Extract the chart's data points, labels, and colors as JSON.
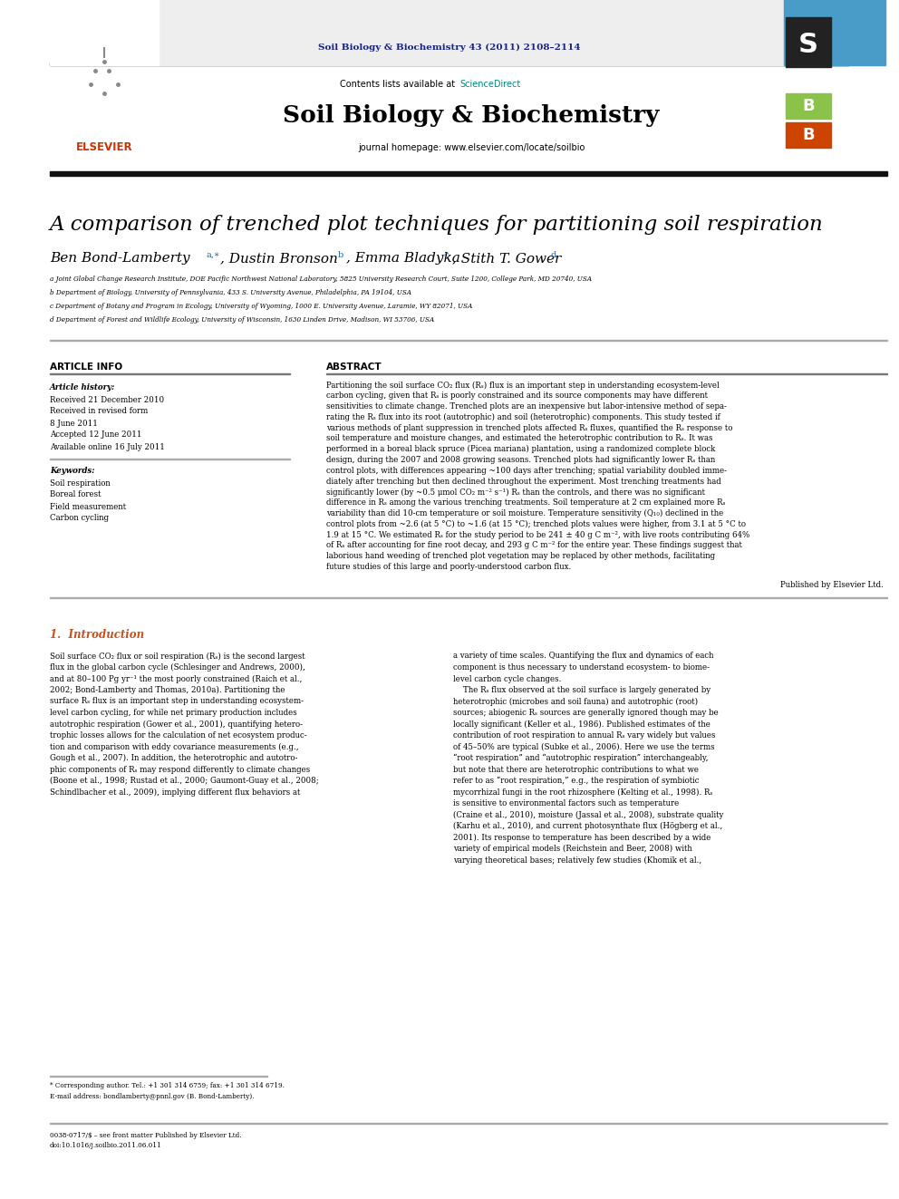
{
  "journal_ref": "Soil Biology & Biochemistry 43 (2011) 2108–2114",
  "journal_ref_color": "#1a237e",
  "contents_text": "Contents lists available at ",
  "sciencedirect_text": "ScienceDirect",
  "sciencedirect_color": "#00897b",
  "journal_name": "Soil Biology & Biochemistry",
  "journal_homepage": "journal homepage: www.elsevier.com/locate/soilbio",
  "article_title": "A comparison of trenched plot techniques for partitioning soil respiration",
  "affil_a": "a Joint Global Change Research Institute, DOE Pacific Northwest National Laboratory, 5825 University Research Court, Suite 1200, College Park, MD 20740, USA",
  "affil_b": "b Department of Biology, University of Pennsylvania, 433 S. University Avenue, Philadelphia, PA 19104, USA",
  "affil_c": "c Department of Botany and Program in Ecology, University of Wyoming, 1000 E. University Avenue, Laramie, WY 82071, USA",
  "affil_d": "d Department of Forest and Wildlife Ecology, University of Wisconsin, 1630 Linden Drive, Madison, WI 53706, USA",
  "article_info_header": "ARTICLE INFO",
  "abstract_header": "ABSTRACT",
  "article_history_label": "Article history:",
  "received1": "Received 21 December 2010",
  "received2": "Received in revised form",
  "received2b": "8 June 2011",
  "accepted": "Accepted 12 June 2011",
  "available": "Available online 16 July 2011",
  "keywords_label": "Keywords:",
  "keyword1": "Soil respiration",
  "keyword2": "Boreal forest",
  "keyword3": "Field measurement",
  "keyword4": "Carbon cycling",
  "abstract_lines": [
    "Partitioning the soil surface CO₂ flux (Rₛ) flux is an important step in understanding ecosystem-level",
    "carbon cycling, given that Rₛ is poorly constrained and its source components may have different",
    "sensitivities to climate change. Trenched plots are an inexpensive but labor-intensive method of sepa-",
    "rating the Rₛ flux into its root (autotrophic) and soil (heterotrophic) components. This study tested if",
    "various methods of plant suppression in trenched plots affected Rₛ fluxes, quantified the Rₛ response to",
    "soil temperature and moisture changes, and estimated the heterotrophic contribution to Rₛ. It was",
    "performed in a boreal black spruce (Picea mariana) plantation, using a randomized complete block",
    "design, during the 2007 and 2008 growing seasons. Trenched plots had significantly lower Rₛ than",
    "control plots, with differences appearing ~100 days after trenching; spatial variability doubled imme-",
    "diately after trenching but then declined throughout the experiment. Most trenching treatments had",
    "significantly lower (by ~0.5 μmol CO₂ m⁻² s⁻¹) Rₛ than the controls, and there was no significant",
    "difference in Rₛ among the various trenching treatments. Soil temperature at 2 cm explained more Rₛ",
    "variability than did 10-cm temperature or soil moisture. Temperature sensitivity (Q₁₀) declined in the",
    "control plots from ~2.6 (at 5 °C) to ~1.6 (at 15 °C); trenched plots values were higher, from 3.1 at 5 °C to",
    "1.9 at 15 °C. We estimated Rₛ for the study period to be 241 ± 40 g C m⁻², with live roots contributing 64%",
    "of Rₛ after accounting for fine root decay, and 293 g C m⁻² for the entire year. These findings suggest that",
    "laborious hand weeding of trenched plot vegetation may be replaced by other methods, facilitating",
    "future studies of this large and poorly-understood carbon flux."
  ],
  "published_by": "Published by Elsevier Ltd.",
  "intro_header": "1.  Introduction",
  "intro1_lines": [
    "Soil surface CO₂ flux or soil respiration (Rₛ) is the second largest",
    "flux in the global carbon cycle (Schlesinger and Andrews, 2000),",
    "and at 80–100 Pg yr⁻¹ the most poorly constrained (Raich et al.,",
    "2002; Bond-Lamberty and Thomas, 2010a). Partitioning the",
    "surface Rₛ flux is an important step in understanding ecosystem-",
    "level carbon cycling, for while net primary production includes",
    "autotrophic respiration (Gower et al., 2001), quantifying hetero-",
    "trophic losses allows for the calculation of net ecosystem produc-",
    "tion and comparison with eddy covariance measurements (e.g.,",
    "Gough et al., 2007). In addition, the heterotrophic and autotro-",
    "phic components of Rₛ may respond differently to climate changes",
    "(Boone et al., 1998; Rustad et al., 2000; Gaumont-Guay et al., 2008;",
    "Schindlbacher et al., 2009), implying different flux behaviors at"
  ],
  "intro2_lines": [
    "a variety of time scales. Quantifying the flux and dynamics of each",
    "component is thus necessary to understand ecosystem- to biome-",
    "level carbon cycle changes.",
    "    The Rₛ flux observed at the soil surface is largely generated by",
    "heterotrophic (microbes and soil fauna) and autotrophic (root)",
    "sources; abiogenic Rₛ sources are generally ignored though may be",
    "locally significant (Keller et al., 1986). Published estimates of the",
    "contribution of root respiration to annual Rₛ vary widely but values",
    "of 45–50% are typical (Subke et al., 2006). Here we use the terms",
    "“root respiration” and “autotrophic respiration” interchangeably,",
    "but note that there are heterotrophic contributions to what we",
    "refer to as “root respiration,” e.g., the respiration of symbiotic",
    "mycorrhizal fungi in the root rhizosphere (Kelting et al., 1998). Rₛ",
    "is sensitive to environmental factors such as temperature",
    "(Craine et al., 2010), moisture (Jassal et al., 2008), substrate quality",
    "(Karhu et al., 2010), and current photosynthate flux (Högberg et al.,",
    "2001). Its response to temperature has been described by a wide",
    "variety of empirical models (Reichstein and Beer, 2008) with",
    "varying theoretical bases; relatively few studies (Khomik et al.,"
  ],
  "footnote1": "* Corresponding author. Tel.: +1 301 314 6759; fax: +1 301 314 6719.",
  "footnote2": "E-mail address: bondlamberty@pnnl.gov (B. Bond-Lamberty).",
  "footnote3": "0038-0717/$ – see front matter Published by Elsevier Ltd.",
  "footnote4": "doi:10.1016/j.soilbio.2011.06.011",
  "bg_color": "#ffffff",
  "orange_color": "#c8501a",
  "blue_link_color": "#1565c0",
  "teal_color": "#00897b"
}
